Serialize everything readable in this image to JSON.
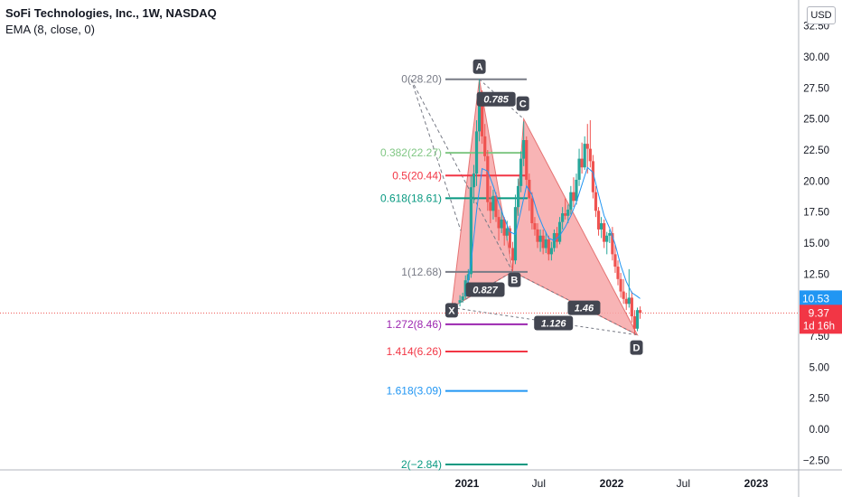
{
  "legend": {
    "title": "SoFi Technologies, Inc., 1W, NASDAQ",
    "indicator": "EMA (8, close, 0)"
  },
  "currency": "USD",
  "colors": {
    "bull": "#26a69a",
    "bear": "#ef5350",
    "ema": "#2196f3",
    "pattern_fill": "#f7a7a8",
    "pattern_stroke": "#000000"
  },
  "chart_data": {
    "type": "candlestick",
    "symbol": "SoFi Technologies, Inc.",
    "interval": "1W",
    "exchange": "NASDAQ",
    "ylim": [
      -3.0,
      33.5
    ],
    "y_ticks": [
      "32.50",
      "30.00",
      "27.50",
      "25.00",
      "22.50",
      "20.00",
      "17.50",
      "15.00",
      "12.50",
      "10.00",
      "7.50",
      "5.00",
      "2.50",
      "0.00",
      "−2.50"
    ],
    "x_ticks": [
      {
        "label": "2021",
        "date": "2021-01-01"
      },
      {
        "label": "Jul",
        "date": "2021-07-01"
      },
      {
        "label": "2022",
        "date": "2022-01-01"
      },
      {
        "label": "Jul",
        "date": "2022-07-01"
      },
      {
        "label": "2023",
        "date": "2023-01-01"
      }
    ],
    "candles": [
      {
        "d": "2020-12-14",
        "o": 10.2,
        "h": 10.8,
        "l": 9.9,
        "c": 10.4
      },
      {
        "d": "2020-12-21",
        "o": 10.4,
        "h": 11.0,
        "l": 10.2,
        "c": 10.7
      },
      {
        "d": "2020-12-28",
        "o": 10.7,
        "h": 12.4,
        "l": 10.5,
        "c": 12.0
      },
      {
        "d": "2021-01-04",
        "o": 12.0,
        "h": 12.9,
        "l": 11.3,
        "c": 12.5
      },
      {
        "d": "2021-01-11",
        "o": 12.5,
        "h": 20.4,
        "l": 12.2,
        "c": 19.5
      },
      {
        "d": "2021-01-18",
        "o": 19.5,
        "h": 21.3,
        "l": 18.2,
        "c": 20.6
      },
      {
        "d": "2021-01-25",
        "o": 20.6,
        "h": 24.9,
        "l": 19.6,
        "c": 24.0
      },
      {
        "d": "2021-02-01",
        "o": 24.0,
        "h": 28.2,
        "l": 23.2,
        "c": 26.5
      },
      {
        "d": "2021-02-08",
        "o": 26.5,
        "h": 27.3,
        "l": 23.0,
        "c": 23.6
      },
      {
        "d": "2021-02-15",
        "o": 23.6,
        "h": 24.6,
        "l": 21.6,
        "c": 22.0
      },
      {
        "d": "2021-02-22",
        "o": 22.0,
        "h": 22.5,
        "l": 17.6,
        "c": 18.3
      },
      {
        "d": "2021-03-01",
        "o": 18.3,
        "h": 19.6,
        "l": 16.6,
        "c": 17.6
      },
      {
        "d": "2021-03-08",
        "o": 17.6,
        "h": 19.3,
        "l": 16.9,
        "c": 18.8
      },
      {
        "d": "2021-03-15",
        "o": 18.8,
        "h": 19.1,
        "l": 16.7,
        "c": 17.1
      },
      {
        "d": "2021-03-22",
        "o": 17.1,
        "h": 17.7,
        "l": 15.2,
        "c": 16.2
      },
      {
        "d": "2021-03-29",
        "o": 16.2,
        "h": 17.6,
        "l": 15.8,
        "c": 16.9
      },
      {
        "d": "2021-04-05",
        "o": 16.9,
        "h": 17.1,
        "l": 14.8,
        "c": 15.6
      },
      {
        "d": "2021-04-12",
        "o": 15.6,
        "h": 16.8,
        "l": 15.2,
        "c": 16.2
      },
      {
        "d": "2021-04-19",
        "o": 16.2,
        "h": 16.4,
        "l": 14.1,
        "c": 14.6
      },
      {
        "d": "2021-04-26",
        "o": 14.6,
        "h": 15.1,
        "l": 12.7,
        "c": 13.6
      },
      {
        "d": "2021-05-03",
        "o": 13.6,
        "h": 18.9,
        "l": 13.3,
        "c": 17.9
      },
      {
        "d": "2021-05-10",
        "o": 17.9,
        "h": 20.2,
        "l": 17.2,
        "c": 19.6
      },
      {
        "d": "2021-05-17",
        "o": 19.6,
        "h": 22.4,
        "l": 19.1,
        "c": 21.8
      },
      {
        "d": "2021-05-24",
        "o": 21.8,
        "h": 24.8,
        "l": 21.2,
        "c": 23.3
      },
      {
        "d": "2021-05-31",
        "o": 23.3,
        "h": 23.6,
        "l": 19.6,
        "c": 20.1
      },
      {
        "d": "2021-06-07",
        "o": 20.1,
        "h": 20.6,
        "l": 17.6,
        "c": 18.6
      },
      {
        "d": "2021-06-14",
        "o": 18.6,
        "h": 19.1,
        "l": 16.1,
        "c": 16.6
      },
      {
        "d": "2021-06-21",
        "o": 16.6,
        "h": 17.1,
        "l": 15.6,
        "c": 16.1
      },
      {
        "d": "2021-06-28",
        "o": 16.1,
        "h": 16.6,
        "l": 14.6,
        "c": 15.1
      },
      {
        "d": "2021-07-05",
        "o": 15.1,
        "h": 16.1,
        "l": 14.3,
        "c": 15.6
      },
      {
        "d": "2021-07-12",
        "o": 15.6,
        "h": 16.1,
        "l": 14.1,
        "c": 14.6
      },
      {
        "d": "2021-07-19",
        "o": 14.6,
        "h": 15.9,
        "l": 14.2,
        "c": 15.3
      },
      {
        "d": "2021-07-26",
        "o": 15.3,
        "h": 15.6,
        "l": 13.6,
        "c": 14.1
      },
      {
        "d": "2021-08-02",
        "o": 14.1,
        "h": 15.1,
        "l": 13.6,
        "c": 14.6
      },
      {
        "d": "2021-08-09",
        "o": 14.6,
        "h": 16.1,
        "l": 14.3,
        "c": 15.8
      },
      {
        "d": "2021-08-16",
        "o": 15.8,
        "h": 16.3,
        "l": 14.6,
        "c": 15.1
      },
      {
        "d": "2021-08-23",
        "o": 15.1,
        "h": 17.1,
        "l": 14.9,
        "c": 16.7
      },
      {
        "d": "2021-08-30",
        "o": 16.7,
        "h": 17.9,
        "l": 16.1,
        "c": 17.4
      },
      {
        "d": "2021-09-06",
        "o": 17.4,
        "h": 18.6,
        "l": 16.9,
        "c": 17.2
      },
      {
        "d": "2021-09-13",
        "o": 17.2,
        "h": 18.1,
        "l": 16.6,
        "c": 17.7
      },
      {
        "d": "2021-09-20",
        "o": 17.7,
        "h": 19.6,
        "l": 17.3,
        "c": 19.1
      },
      {
        "d": "2021-09-27",
        "o": 19.1,
        "h": 20.3,
        "l": 17.9,
        "c": 18.4
      },
      {
        "d": "2021-10-04",
        "o": 18.4,
        "h": 20.6,
        "l": 18.1,
        "c": 20.1
      },
      {
        "d": "2021-10-11",
        "o": 20.1,
        "h": 22.6,
        "l": 19.6,
        "c": 21.8
      },
      {
        "d": "2021-10-18",
        "o": 21.8,
        "h": 23.1,
        "l": 20.6,
        "c": 21.1
      },
      {
        "d": "2021-10-25",
        "o": 21.1,
        "h": 23.6,
        "l": 20.9,
        "c": 23.0
      },
      {
        "d": "2021-11-01",
        "o": 23.0,
        "h": 24.6,
        "l": 20.6,
        "c": 22.6
      },
      {
        "d": "2021-11-08",
        "o": 22.6,
        "h": 24.9,
        "l": 21.1,
        "c": 21.6
      },
      {
        "d": "2021-11-15",
        "o": 21.6,
        "h": 22.1,
        "l": 18.6,
        "c": 19.1
      },
      {
        "d": "2021-11-22",
        "o": 19.1,
        "h": 19.6,
        "l": 17.1,
        "c": 17.6
      },
      {
        "d": "2021-11-29",
        "o": 17.6,
        "h": 17.9,
        "l": 15.6,
        "c": 16.1
      },
      {
        "d": "2021-12-06",
        "o": 16.1,
        "h": 17.1,
        "l": 15.4,
        "c": 16.6
      },
      {
        "d": "2021-12-13",
        "o": 16.6,
        "h": 16.9,
        "l": 14.6,
        "c": 15.1
      },
      {
        "d": "2021-12-20",
        "o": 15.1,
        "h": 15.9,
        "l": 14.1,
        "c": 15.6
      },
      {
        "d": "2021-12-27",
        "o": 15.6,
        "h": 16.1,
        "l": 15.0,
        "c": 15.8
      },
      {
        "d": "2022-01-03",
        "o": 15.8,
        "h": 16.3,
        "l": 13.6,
        "c": 14.1
      },
      {
        "d": "2022-01-10",
        "o": 14.1,
        "h": 14.9,
        "l": 12.6,
        "c": 13.1
      },
      {
        "d": "2022-01-17",
        "o": 13.1,
        "h": 13.6,
        "l": 11.6,
        "c": 12.1
      },
      {
        "d": "2022-01-24",
        "o": 12.1,
        "h": 12.6,
        "l": 10.6,
        "c": 11.1
      },
      {
        "d": "2022-01-31",
        "o": 11.1,
        "h": 12.1,
        "l": 10.1,
        "c": 10.5
      },
      {
        "d": "2022-02-07",
        "o": 10.5,
        "h": 11.0,
        "l": 9.6,
        "c": 10.1
      },
      {
        "d": "2022-02-14",
        "o": 10.1,
        "h": 12.9,
        "l": 9.8,
        "c": 10.6
      },
      {
        "d": "2022-02-21",
        "o": 10.6,
        "h": 11.1,
        "l": 8.6,
        "c": 9.1
      },
      {
        "d": "2022-02-28",
        "o": 9.1,
        "h": 9.6,
        "l": 7.6,
        "c": 8.1
      },
      {
        "d": "2022-03-07",
        "o": 8.1,
        "h": 9.8,
        "l": 7.9,
        "c": 9.6
      },
      {
        "d": "2022-03-14",
        "o": 9.6,
        "h": 9.9,
        "l": 8.9,
        "c": 9.37
      }
    ],
    "ema": {
      "name": "EMA (8, close, 0)",
      "last": 10.53,
      "values": [
        [
          "2020-12-28",
          10.8
        ],
        [
          "2021-01-11",
          13.4
        ],
        [
          "2021-01-25",
          17.6
        ],
        [
          "2021-02-08",
          21.0
        ],
        [
          "2021-02-22",
          20.8
        ],
        [
          "2021-03-08",
          19.6
        ],
        [
          "2021-03-22",
          18.2
        ],
        [
          "2021-04-05",
          17.0
        ],
        [
          "2021-04-19",
          15.9
        ],
        [
          "2021-05-03",
          15.7
        ],
        [
          "2021-05-17",
          17.6
        ],
        [
          "2021-05-31",
          19.6
        ],
        [
          "2021-06-14",
          18.9
        ],
        [
          "2021-06-28",
          17.4
        ],
        [
          "2021-07-12",
          16.3
        ],
        [
          "2021-07-26",
          15.4
        ],
        [
          "2021-08-09",
          15.2
        ],
        [
          "2021-08-23",
          15.6
        ],
        [
          "2021-09-06",
          16.3
        ],
        [
          "2021-09-20",
          17.2
        ],
        [
          "2021-10-04",
          18.3
        ],
        [
          "2021-10-18",
          19.7
        ],
        [
          "2021-11-01",
          21.1
        ],
        [
          "2021-11-15",
          20.7
        ],
        [
          "2021-11-29",
          18.9
        ],
        [
          "2021-12-13",
          17.2
        ],
        [
          "2021-12-27",
          16.2
        ],
        [
          "2022-01-10",
          14.9
        ],
        [
          "2022-01-24",
          13.2
        ],
        [
          "2022-02-07",
          11.9
        ],
        [
          "2022-02-21",
          11.0
        ],
        [
          "2022-03-07",
          10.7
        ],
        [
          "2022-03-14",
          10.53
        ]
      ]
    },
    "harmonic_pattern": {
      "points": [
        {
          "label": "X",
          "date": "2020-11-23",
          "price": 9.8
        },
        {
          "label": "A",
          "date": "2021-02-01",
          "price": 28.2
        },
        {
          "label": "B",
          "date": "2021-04-26",
          "price": 12.7
        },
        {
          "label": "C",
          "date": "2021-05-24",
          "price": 25.0
        },
        {
          "label": "D",
          "date": "2022-03-07",
          "price": 7.6
        }
      ],
      "ratios": [
        {
          "label": "0.827",
          "between": "XA-AB"
        },
        {
          "label": "0.785",
          "between": "AB-BC"
        },
        {
          "label": "1.46",
          "between": "BC-CD"
        },
        {
          "label": "1.126",
          "between": "XA-AD"
        }
      ]
    },
    "fib_levels": [
      {
        "label": "0(28.20)",
        "price": 28.2,
        "color": "#787b86"
      },
      {
        "label": "0.382(22.27)",
        "price": 22.27,
        "color": "#81c784"
      },
      {
        "label": "0.5(20.44)",
        "price": 20.44,
        "color": "#f23645"
      },
      {
        "label": "0.618(18.61)",
        "price": 18.61,
        "color": "#089981"
      },
      {
        "label": "1(12.68)",
        "price": 12.68,
        "color": "#787b86"
      },
      {
        "label": "1.272(8.46)",
        "price": 8.46,
        "color": "#9c27b0"
      },
      {
        "label": "1.414(6.26)",
        "price": 6.26,
        "color": "#f23645"
      },
      {
        "label": "1.618(3.09)",
        "price": 3.09,
        "color": "#2196f3"
      },
      {
        "label": "2(−2.84)",
        "price": -2.84,
        "color": "#089981"
      }
    ],
    "price_labels": {
      "ema_badge": "10.53",
      "last_price": "9.37",
      "countdown": "1d 16h"
    }
  }
}
